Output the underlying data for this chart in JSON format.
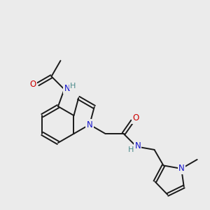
{
  "background_color": "#ebebeb",
  "bond_color": "#1a1a1a",
  "atom_colors": {
    "N": "#1414cc",
    "O": "#cc0000",
    "H": "#4a8a8a",
    "C": "#1a1a1a"
  },
  "figsize": [
    3.0,
    3.0
  ],
  "dpi": 100
}
